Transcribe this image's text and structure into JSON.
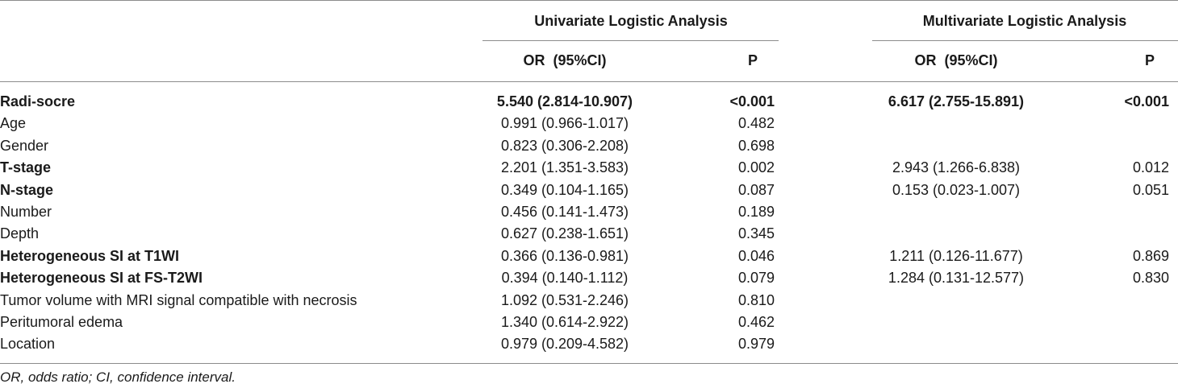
{
  "table": {
    "group_headers": {
      "univariate": "Univariate Logistic Analysis",
      "multivariate": "Multivariate Logistic Analysis"
    },
    "col_headers": {
      "uni_or": "OR  (95%CI)",
      "uni_p": "P",
      "multi_or": "OR  (95%CI)",
      "multi_p": "P"
    },
    "rows": [
      {
        "label": "Radi-socre",
        "bold": true,
        "uni_or": "5.540 (2.814-10.907)",
        "uni_p": "<0.001",
        "multi_or": "6.617 (2.755-15.891)",
        "multi_p": "<0.001",
        "bold_values": true
      },
      {
        "label": "Age",
        "bold": false,
        "uni_or": "0.991 (0.966-1.017)",
        "uni_p": "0.482",
        "multi_or": "",
        "multi_p": ""
      },
      {
        "label": "Gender",
        "bold": false,
        "uni_or": "0.823 (0.306-2.208)",
        "uni_p": "0.698",
        "multi_or": "",
        "multi_p": ""
      },
      {
        "label": "T-stage",
        "bold": true,
        "uni_or": "2.201 (1.351-3.583)",
        "uni_p": "0.002",
        "multi_or": "2.943 (1.266-6.838)",
        "multi_p": "0.012"
      },
      {
        "label": "N-stage",
        "bold": true,
        "uni_or": "0.349 (0.104-1.165)",
        "uni_p": "0.087",
        "multi_or": "0.153 (0.023-1.007)",
        "multi_p": "0.051"
      },
      {
        "label": "Number",
        "bold": false,
        "uni_or": "0.456 (0.141-1.473)",
        "uni_p": "0.189",
        "multi_or": "",
        "multi_p": ""
      },
      {
        "label": "Depth",
        "bold": false,
        "uni_or": "0.627 (0.238-1.651)",
        "uni_p": "0.345",
        "multi_or": "",
        "multi_p": ""
      },
      {
        "label": "Heterogeneous SI at T1WI",
        "bold": true,
        "uni_or": "0.366 (0.136-0.981)",
        "uni_p": "0.046",
        "multi_or": "1.211 (0.126-11.677)",
        "multi_p": "0.869"
      },
      {
        "label": "Heterogeneous SI at FS-T2WI",
        "bold": true,
        "uni_or": "0.394 (0.140-1.112)",
        "uni_p": "0.079",
        "multi_or": "1.284 (0.131-12.577)",
        "multi_p": "0.830"
      },
      {
        "label": "Tumor volume with MRI signal compatible with necrosis",
        "bold": false,
        "uni_or": "1.092 (0.531-2.246)",
        "uni_p": "0.810",
        "multi_or": "",
        "multi_p": ""
      },
      {
        "label": "Peritumoral edema",
        "bold": false,
        "uni_or": "1.340 (0.614-2.922)",
        "uni_p": "0.462",
        "multi_or": "",
        "multi_p": ""
      },
      {
        "label": "Location",
        "bold": false,
        "uni_or": "0.979 (0.209-4.582)",
        "uni_p": "0.979",
        "multi_or": "",
        "multi_p": ""
      }
    ],
    "footnote": "OR, odds ratio; CI, confidence interval."
  }
}
